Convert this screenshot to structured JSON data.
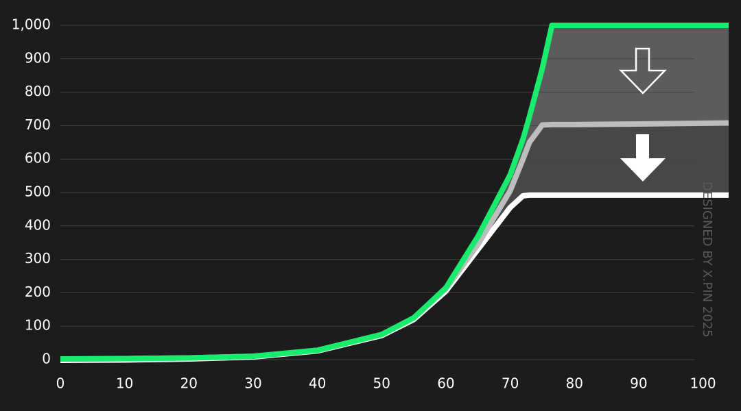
{
  "chart_data": {
    "type": "line",
    "x": [
      0,
      10,
      20,
      30,
      40,
      50,
      55,
      60,
      65,
      70,
      72,
      73,
      75,
      76.5,
      80,
      90,
      104
    ],
    "series": [
      {
        "color": "#19eb6c",
        "values": [
          2,
          3,
          5,
          10,
          28,
          75,
          125,
          215,
          369,
          553,
          660,
          727,
          871,
          1000,
          1000,
          1000,
          1000
        ]
      },
      {
        "color": "#bdbdbd",
        "values": [
          2,
          3,
          5,
          10,
          28,
          75,
          125,
          212,
          345,
          505,
          600,
          650,
          702,
          703,
          703,
          705,
          708
        ]
      },
      {
        "color": "#ffffff",
        "values": [
          -2,
          -1,
          2,
          8,
          26,
          72,
          120,
          205,
          330,
          455,
          490,
          492,
          492,
          492,
          492,
          492,
          492
        ]
      }
    ],
    "xlim": [
      0,
      104
    ],
    "xticks": [
      0,
      10,
      20,
      30,
      40,
      50,
      60,
      70,
      80,
      90,
      100
    ],
    "ylim": [
      0,
      1000
    ],
    "yticks": [
      0,
      100,
      200,
      300,
      400,
      500,
      600,
      700,
      800,
      900,
      {
        "value": 1000,
        "label": "1,000"
      }
    ],
    "grid": true,
    "band_colors": [
      "#5c5c5c",
      "#474747"
    ],
    "watermark": "DESIGNED BY X.PIN 2025"
  }
}
